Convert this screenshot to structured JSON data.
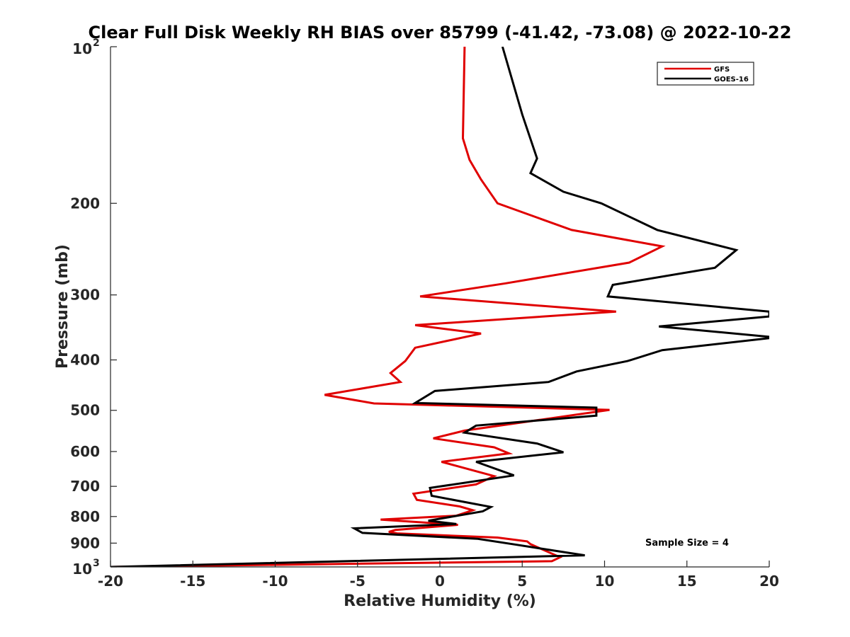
{
  "chart_data": {
    "type": "line",
    "title": "Clear Full Disk Weekly RH BIAS over 85799 (-41.42, -73.08) @ 2022-10-22",
    "xlabel": "Relative Humidity (%)",
    "ylabel": "Pressure (mb)",
    "xlim": [
      -20,
      20
    ],
    "ylim": [
      100,
      1000
    ],
    "y_scale": "log",
    "y_reversed": true,
    "x_ticks": [
      "-20",
      "-15",
      "-10",
      "-5",
      "0",
      "5",
      "10",
      "15",
      "20"
    ],
    "y_ticks": [
      {
        "value": 100,
        "base": "10",
        "exp": "2"
      },
      {
        "value": 200,
        "label": "200"
      },
      {
        "value": 300,
        "label": "300"
      },
      {
        "value": 400,
        "label": "400"
      },
      {
        "value": 500,
        "label": "500"
      },
      {
        "value": 600,
        "label": "600"
      },
      {
        "value": 700,
        "label": "700"
      },
      {
        "value": 800,
        "label": "800"
      },
      {
        "value": 900,
        "label": "900"
      },
      {
        "value": 1000,
        "base": "10",
        "exp": "3"
      }
    ],
    "grid": false,
    "legend_position": "top-right",
    "annotation": "Sample Size = 4",
    "series": [
      {
        "name": "GFS",
        "color": "#e00000",
        "points": [
          [
            1.5,
            100
          ],
          [
            1.4,
            150
          ],
          [
            1.8,
            165
          ],
          [
            2.5,
            180
          ],
          [
            3.5,
            200
          ],
          [
            8.0,
            225
          ],
          [
            13.5,
            242
          ],
          [
            11.5,
            260
          ],
          [
            4.0,
            285
          ],
          [
            -1.2,
            302
          ],
          [
            10.7,
            323
          ],
          [
            -1.5,
            343
          ],
          [
            2.5,
            356
          ],
          [
            -1.5,
            379
          ],
          [
            -2.1,
            402
          ],
          [
            -3.0,
            424
          ],
          [
            -2.4,
            441
          ],
          [
            -7.0,
            467
          ],
          [
            -4.0,
            485
          ],
          [
            10.3,
            499
          ],
          [
            1.5,
            547
          ],
          [
            -0.4,
            566
          ],
          [
            3.3,
            589
          ],
          [
            4.2,
            605
          ],
          [
            0.1,
            628
          ],
          [
            3.3,
            669
          ],
          [
            2.2,
            694
          ],
          [
            -1.6,
            723
          ],
          [
            -1.4,
            743
          ],
          [
            1.2,
            765
          ],
          [
            2.0,
            778
          ],
          [
            1.0,
            797
          ],
          [
            -3.6,
            811
          ],
          [
            1.1,
            830
          ],
          [
            -2.7,
            849
          ],
          [
            -3.1,
            856
          ],
          [
            -2.6,
            862
          ],
          [
            3.5,
            878
          ],
          [
            5.3,
            893
          ],
          [
            5.5,
            904
          ],
          [
            7.3,
            958
          ],
          [
            6.8,
            975
          ],
          [
            -20,
            1000
          ]
        ]
      },
      {
        "name": "GOES-16",
        "color": "#000000",
        "points": [
          [
            3.8,
            100
          ],
          [
            5.0,
            135
          ],
          [
            5.9,
            164
          ],
          [
            5.5,
            175
          ],
          [
            7.5,
            190
          ],
          [
            9.8,
            200
          ],
          [
            13.2,
            225
          ],
          [
            18.0,
            246
          ],
          [
            16.7,
            266
          ],
          [
            10.5,
            287
          ],
          [
            10.2,
            302
          ],
          [
            20.0,
            323
          ],
          [
            20.0,
            330
          ],
          [
            13.3,
            345
          ],
          [
            20.4,
            362
          ],
          [
            13.5,
            383
          ],
          [
            11.4,
            402
          ],
          [
            8.3,
            421
          ],
          [
            6.6,
            441
          ],
          [
            -0.3,
            459
          ],
          [
            -1.5,
            484
          ],
          [
            9.5,
            494
          ],
          [
            9.5,
            512
          ],
          [
            2.2,
            535
          ],
          [
            1.5,
            552
          ],
          [
            5.9,
            579
          ],
          [
            7.5,
            602
          ],
          [
            2.2,
            628
          ],
          [
            4.5,
            667
          ],
          [
            -0.6,
            705
          ],
          [
            -0.5,
            730
          ],
          [
            3.1,
            767
          ],
          [
            2.6,
            782
          ],
          [
            -0.7,
            815
          ],
          [
            1.0,
            827
          ],
          [
            -5.2,
            843
          ],
          [
            -4.7,
            860
          ],
          [
            2.3,
            883
          ],
          [
            4.7,
            907
          ],
          [
            7.2,
            933
          ],
          [
            8.8,
            950
          ],
          [
            -20,
            1000
          ]
        ]
      }
    ]
  }
}
